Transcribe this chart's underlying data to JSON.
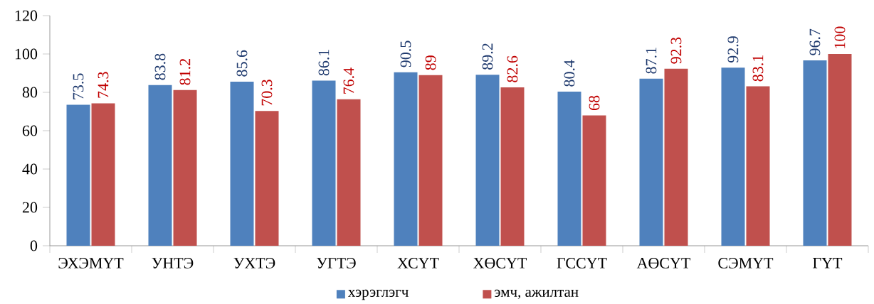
{
  "chart_data": {
    "type": "bar",
    "categories": [
      "ЭХЭМҮТ",
      "УНТЭ",
      "УХТЭ",
      "УГТЭ",
      "ХСҮТ",
      "ХӨСҮТ",
      "ГССҮТ",
      "АӨСҮТ",
      "СЭМҮТ",
      "ГҮТ"
    ],
    "series": [
      {
        "name": "хэрэглэгч",
        "color": "#4f81bd",
        "values": [
          73.5,
          83.8,
          85.6,
          86.1,
          90.5,
          89.2,
          80.4,
          87.1,
          92.9,
          96.7
        ]
      },
      {
        "name": "эмч, ажилтан",
        "color": "#c0504d",
        "values": [
          74.3,
          81.2,
          70.3,
          76.4,
          89,
          82.6,
          68,
          92.3,
          83.1,
          100
        ]
      }
    ],
    "ylim": [
      0,
      120
    ],
    "yticks": [
      0,
      20,
      40,
      60,
      80,
      100,
      120
    ],
    "data_labels": true,
    "legend": "bottom",
    "grid": false
  }
}
